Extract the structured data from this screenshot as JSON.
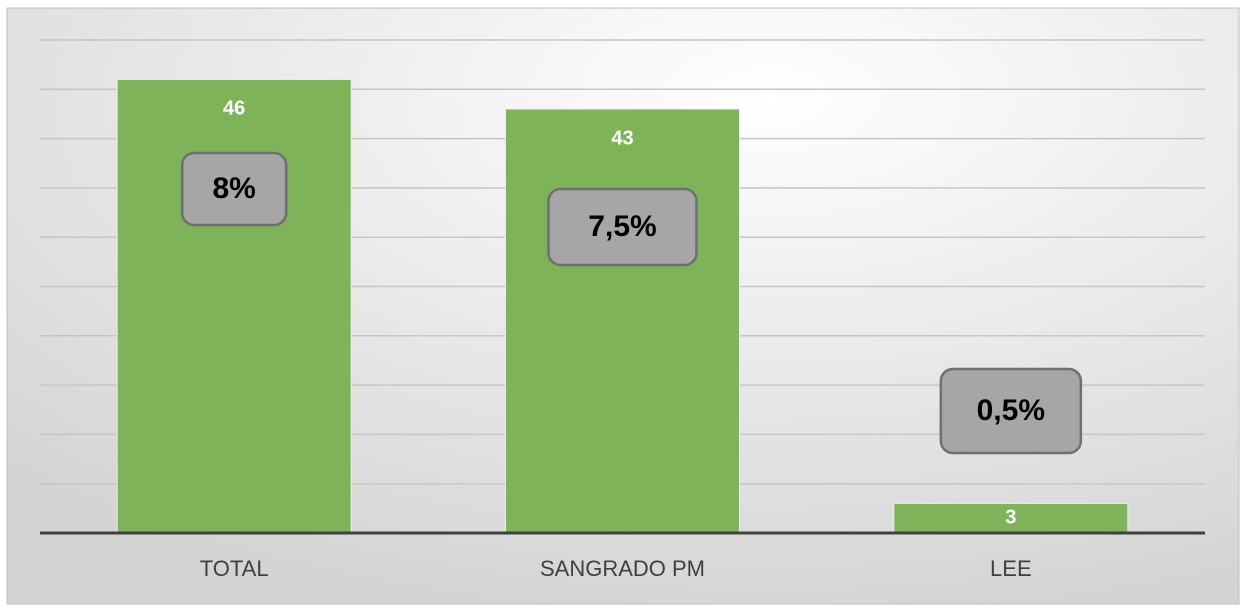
{
  "chart_data": {
    "type": "bar",
    "categories": [
      "TOTAL",
      "SANGRADO PM",
      "LEE"
    ],
    "values": [
      46,
      43,
      3
    ],
    "color": "#7fb35a",
    "ylim": [
      0,
      50
    ],
    "yticks": [
      0,
      5,
      10,
      15,
      20,
      25,
      30,
      35,
      40,
      45,
      50
    ],
    "grid": true,
    "annotations": [
      "8%",
      "7,5%",
      "0,5%"
    ]
  }
}
